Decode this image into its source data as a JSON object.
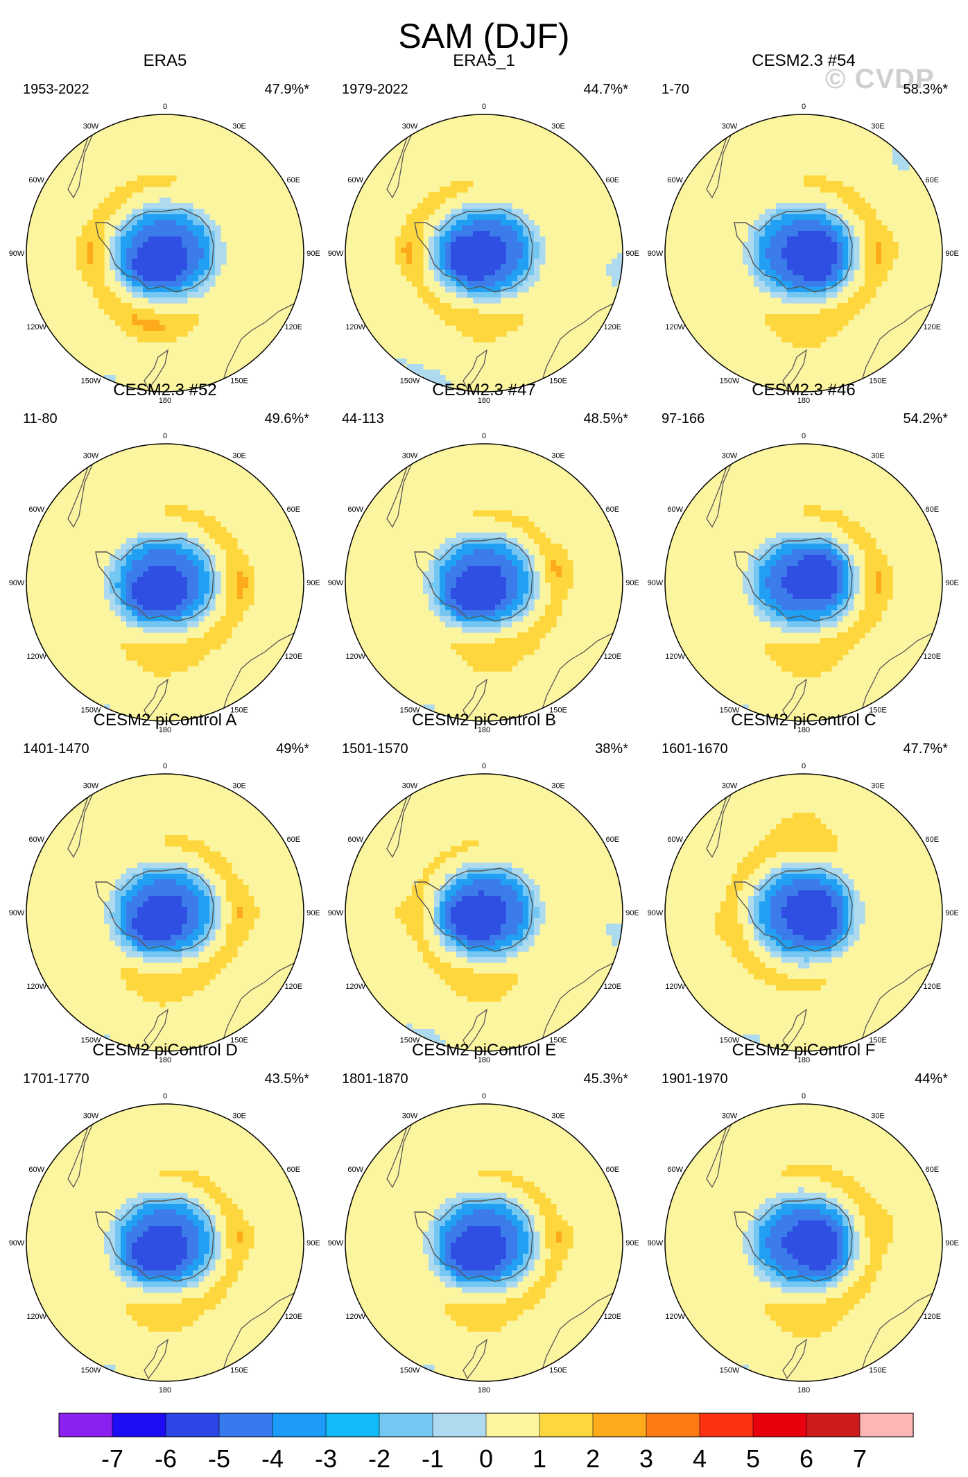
{
  "title": "SAM (DJF)",
  "watermark": "© CVDP",
  "lon_labels": [
    "0",
    "30E",
    "60E",
    "90E",
    "120E",
    "150E",
    "180",
    "150W",
    "120W",
    "90W",
    "60W",
    "30W"
  ],
  "palette": {
    "ocean_bg": "#FCF59F",
    "neg1": "#AEDAF0",
    "neg2": "#74C6F3",
    "neg3": "#21A0F3",
    "neg4": "#3C7CEA",
    "neg5": "#2F4FE3",
    "pos1": "#FED73F",
    "pos2": "#FDAA1B",
    "coast": "#555555"
  },
  "panels": [
    {
      "title": "ERA5",
      "period": "1953-2022",
      "pct": "47.9%*",
      "p": {
        "ax": 0,
        "ay": 0,
        "ar": 0.62,
        "tilt": 0,
        "rx": 0.9,
        "ry": 0.9,
        "rRot": 0,
        "lw": 0.15,
        "lx": -0.55,
        "ly": 0.0,
        "blob": [
          -0.1,
          0.52,
          0.18,
          0.06
        ],
        "blueLow": [
          -0.8,
          0.9,
          0.0,
          0.95,
          0.2,
          0.2
        ]
      }
    },
    {
      "title": "ERA5_1",
      "period": "1979-2022",
      "pct": "44.7%*",
      "p": {
        "ax": 0.05,
        "ay": -0.02,
        "ar": 0.6,
        "tilt": 0.2,
        "rx": 0.92,
        "ry": 0.82,
        "rRot": 0.3,
        "lw": 0.12,
        "lx": -0.55,
        "ly": 0.0,
        "blob": [
          0.0,
          0.55,
          0.12,
          0.05
        ],
        "blueLow": [
          -0.8,
          0.2,
          -0.4,
          0.95,
          0.2,
          0.3
        ]
      }
    },
    {
      "title": "CESM2.3 #54",
      "period": "1-70",
      "pct": "58.3%*",
      "p": {
        "ax": 0.0,
        "ay": 0.0,
        "ar": 0.62,
        "tilt": -0.1,
        "rx": 0.9,
        "ry": 0.88,
        "rRot": 0.0,
        "lw": 0.18,
        "lx": 0.6,
        "ly": 0.0,
        "blob": [
          0.0,
          0.58,
          0.2,
          0.08
        ],
        "blueLow": [
          0.6,
          0.9,
          0.8,
          -0.6,
          0.3,
          0.3
        ]
      }
    },
    {
      "title": "CESM2.3 #52",
      "period": "11-80",
      "pct": "49.6%*",
      "p": {
        "ax": -0.05,
        "ay": 0.0,
        "ar": 0.58,
        "tilt": 0,
        "rx": 0.92,
        "ry": 0.88,
        "rRot": 0.2,
        "lw": 0.16,
        "lx": 0.55,
        "ly": 0.0,
        "blob": [
          -0.05,
          0.58,
          0.18,
          0.07
        ],
        "blueLow": [
          -0.8,
          0.9,
          0.3,
          0.95,
          0.2,
          0.2
        ]
      }
    },
    {
      "title": "CESM2.3 #47",
      "period": "44-113",
      "pct": "48.5%*",
      "p": {
        "ax": 0.0,
        "ay": 0.0,
        "ar": 0.6,
        "tilt": 0,
        "rx": 0.9,
        "ry": 0.85,
        "rRot": 0.3,
        "lw": 0.16,
        "lx": 0.55,
        "ly": -0.1,
        "blob": [
          0.05,
          0.55,
          0.22,
          0.08
        ],
        "blueLow": [
          -0.8,
          0.9,
          0.2,
          0.95,
          0.2,
          0.3
        ]
      }
    },
    {
      "title": "CESM2.3 #46",
      "period": "97-166",
      "pct": "54.2%*",
      "p": {
        "ax": 0.0,
        "ay": 0.0,
        "ar": 0.58,
        "tilt": 0,
        "rx": 0.9,
        "ry": 0.88,
        "rRot": 0.1,
        "lw": 0.18,
        "lx": 0.55,
        "ly": 0.0,
        "blob": [
          0.0,
          0.58,
          0.2,
          0.08
        ],
        "blueLow": [
          0.8,
          -0.9,
          0.9,
          0.3,
          0.3,
          0.2
        ]
      }
    },
    {
      "title": "CESM2 piControl A",
      "period": "1401-1470",
      "pct": "49%*",
      "p": {
        "ax": 0.0,
        "ay": 0.0,
        "ar": 0.6,
        "tilt": 0,
        "rx": 0.9,
        "ry": 0.88,
        "rRot": 0,
        "lw": 0.16,
        "lx": 0.6,
        "ly": 0.0,
        "blob": [
          -0.05,
          0.55,
          0.2,
          0.07
        ],
        "blueLow": [
          -0.8,
          0.9,
          0.0,
          0.95,
          0.2,
          0.2
        ]
      }
    },
    {
      "title": "CESM2 piControl B",
      "period": "1501-1570",
      "pct": "38%*",
      "p": {
        "ax": 0.1,
        "ay": 0.0,
        "ar": 0.58,
        "tilt": 0.1,
        "rx": 0.82,
        "ry": 0.85,
        "rRot": 0.4,
        "lw": 0.14,
        "lx": -0.6,
        "ly": 0.0,
        "blob": [
          0.0,
          0.58,
          0.16,
          0.06
        ],
        "blueLow": [
          -0.8,
          0.3,
          -0.2,
          0.95,
          0.2,
          0.3
        ]
      }
    },
    {
      "title": "CESM2 piControl C",
      "period": "1601-1670",
      "pct": "47.7%*",
      "p": {
        "ax": 0.0,
        "ay": 0.0,
        "ar": 0.58,
        "tilt": 0,
        "rx": 0.88,
        "ry": 0.9,
        "rRot": 0,
        "lw": 0.14,
        "lx": -0.6,
        "ly": 0.1,
        "blob": [
          0.0,
          -0.65,
          0.14,
          0.05
        ],
        "blueLow": [
          0.8,
          0.9,
          0.7,
          -0.6,
          0.3,
          0.25
        ]
      }
    },
    {
      "title": "CESM2 piControl D",
      "period": "1701-1770",
      "pct": "43.5%*",
      "p": {
        "ax": 0.0,
        "ay": 0.0,
        "ar": 0.6,
        "tilt": 0,
        "rx": 0.88,
        "ry": 0.86,
        "rRot": 0.2,
        "lw": 0.14,
        "lx": 0.55,
        "ly": -0.05,
        "blob": [
          -0.05,
          0.55,
          0.14,
          0.05
        ],
        "blueLow": [
          -0.8,
          0.9,
          0.0,
          0.95,
          0.2,
          0.2
        ]
      }
    },
    {
      "title": "CESM2 piControl E",
      "period": "1801-1870",
      "pct": "45.3%*",
      "p": {
        "ax": 0.0,
        "ay": 0.0,
        "ar": 0.6,
        "tilt": 0,
        "rx": 0.88,
        "ry": 0.85,
        "rRot": 0.3,
        "lw": 0.14,
        "lx": 0.55,
        "ly": -0.05,
        "blob": [
          -0.05,
          0.58,
          0.14,
          0.05
        ],
        "blueLow": [
          -0.8,
          0.9,
          0.0,
          0.95,
          0.2,
          0.2
        ]
      }
    },
    {
      "title": "CESM2 piControl F",
      "period": "1901-1970",
      "pct": "44%*",
      "p": {
        "ax": 0.0,
        "ay": 0.0,
        "ar": 0.58,
        "tilt": 0,
        "rx": 0.88,
        "ry": 0.9,
        "rRot": 0,
        "lw": 0.16,
        "lx": 0.6,
        "ly": -0.1,
        "blob": [
          0.0,
          0.58,
          0.2,
          0.08
        ],
        "blueLow": [
          0.8,
          0.9,
          0.8,
          -0.6,
          0.3,
          0.3
        ]
      }
    }
  ],
  "colorbar": {
    "colors": [
      "#8B20F0",
      "#1E0CF5",
      "#2C46E6",
      "#3779EF",
      "#1C9BF9",
      "#12BBF8",
      "#74C6F3",
      "#AEDAF0",
      "#FCF59F",
      "#FED73F",
      "#FDAA1B",
      "#FD7B12",
      "#FE3212",
      "#E9000D",
      "#CC1A1D",
      "#FDB5B5"
    ],
    "labels": [
      "-7",
      "-6",
      "-5",
      "-4",
      "-3",
      "-2",
      "-1",
      "0",
      "1",
      "2",
      "3",
      "4",
      "5",
      "6",
      "7"
    ]
  }
}
